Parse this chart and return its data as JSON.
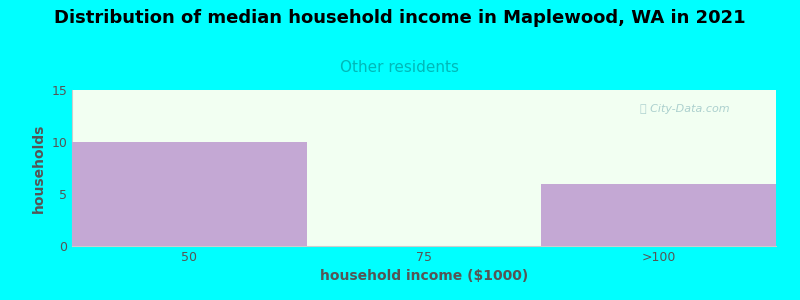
{
  "title": "Distribution of median household income in Maplewood, WA in 2021",
  "subtitle": "Other residents",
  "subtitle_color": "#00b8b8",
  "xlabel": "household income ($1000)",
  "ylabel": "households",
  "background_color": "#00ffff",
  "plot_bg_color": "#f2fff2",
  "bar_color": "#c4a8d4",
  "bar_values": [
    10,
    0,
    6
  ],
  "bar_edges": [
    0,
    1,
    2,
    3
  ],
  "ylim": [
    0,
    15
  ],
  "yticks": [
    0,
    5,
    10,
    15
  ],
  "xtick_labels": [
    "50",
    "75",
    ">100"
  ],
  "xtick_positions": [
    0.5,
    1.5,
    2.5
  ],
  "title_fontsize": 13,
  "subtitle_fontsize": 11,
  "axis_label_fontsize": 10,
  "tick_fontsize": 9,
  "watermark_text": "ⓘ City-Data.com",
  "watermark_color": "#a0c8c8",
  "tick_color": "#555555",
  "spine_color": "#cccccc"
}
